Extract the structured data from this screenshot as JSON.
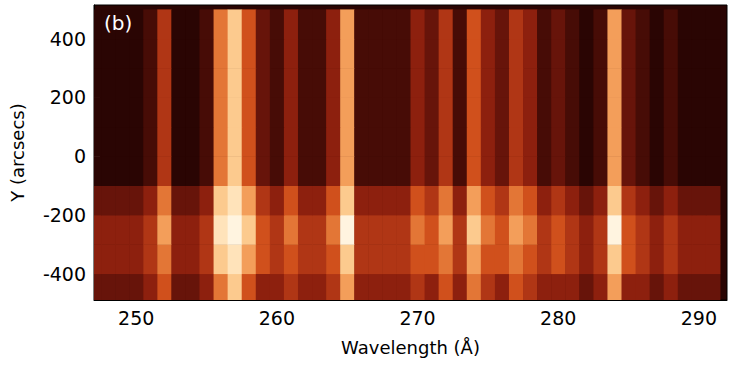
{
  "chart_data": {
    "type": "heatmap",
    "panel_label": "(b)",
    "x_label": "Wavelength (Å)",
    "y_label": "Y (arcsecs)",
    "x": [
      247,
      248,
      249,
      250,
      251,
      252,
      253,
      254,
      255,
      256,
      257,
      258,
      259,
      260,
      261,
      262,
      263,
      264,
      265,
      266,
      267,
      268,
      269,
      270,
      271,
      272,
      273,
      274,
      275,
      276,
      277,
      278,
      279,
      280,
      281,
      282,
      283,
      284,
      285,
      286,
      287,
      288,
      289,
      290,
      291
    ],
    "y": [
      -450,
      -350,
      -250,
      -150,
      -50,
      50,
      150,
      250,
      350,
      450
    ],
    "z": [
      [
        2,
        2,
        2,
        2,
        3,
        5,
        2,
        2,
        3,
        6,
        8,
        5,
        3,
        3,
        4,
        3,
        3,
        4,
        7,
        3,
        3,
        3,
        3,
        4,
        3,
        5,
        3,
        6,
        4,
        3,
        5,
        4,
        3,
        3,
        3,
        2,
        3,
        7,
        3,
        3,
        2,
        3,
        2,
        2,
        2
      ],
      [
        3,
        3,
        3,
        3,
        4,
        6,
        3,
        3,
        4,
        8,
        9,
        7,
        5,
        4,
        5,
        4,
        4,
        5,
        8,
        4,
        4,
        4,
        4,
        5,
        5,
        6,
        4,
        7,
        5,
        5,
        6,
        5,
        4,
        5,
        4,
        3,
        4,
        8,
        5,
        4,
        3,
        4,
        3,
        3,
        3
      ],
      [
        3,
        3,
        3,
        3,
        4,
        7,
        3,
        3,
        4,
        9,
        10,
        8,
        5,
        4,
        6,
        4,
        4,
        6,
        10,
        4,
        4,
        4,
        4,
        6,
        5,
        7,
        4,
        8,
        6,
        5,
        7,
        6,
        4,
        5,
        4,
        3,
        4,
        10,
        5,
        4,
        3,
        4,
        3,
        3,
        3
      ],
      [
        2,
        2,
        2,
        2,
        3,
        6,
        2,
        2,
        3,
        8,
        9,
        7,
        4,
        3,
        5,
        3,
        3,
        5,
        8,
        3,
        3,
        3,
        3,
        5,
        4,
        6,
        3,
        7,
        5,
        4,
        6,
        5,
        3,
        4,
        3,
        2,
        3,
        8,
        4,
        3,
        2,
        3,
        2,
        2,
        2
      ],
      [
        0,
        0,
        0,
        0,
        1,
        4,
        0,
        0,
        1,
        6,
        8,
        5,
        2,
        1,
        3,
        1,
        1,
        3,
        7,
        1,
        1,
        1,
        1,
        3,
        2,
        4,
        1,
        5,
        3,
        2,
        4,
        3,
        1,
        2,
        1,
        0,
        1,
        7,
        2,
        1,
        0,
        1,
        0,
        0,
        0
      ],
      [
        0,
        0,
        0,
        0,
        1,
        4,
        0,
        0,
        1,
        6,
        8,
        5,
        2,
        1,
        3,
        1,
        1,
        3,
        7,
        1,
        1,
        1,
        1,
        3,
        2,
        4,
        1,
        5,
        3,
        2,
        4,
        3,
        1,
        2,
        1,
        0,
        1,
        7,
        2,
        1,
        0,
        1,
        0,
        0,
        0
      ],
      [
        0,
        0,
        0,
        0,
        1,
        4,
        0,
        0,
        1,
        6,
        8,
        5,
        2,
        1,
        3,
        1,
        1,
        3,
        7,
        1,
        1,
        1,
        1,
        3,
        2,
        4,
        1,
        5,
        3,
        2,
        4,
        3,
        1,
        2,
        1,
        0,
        1,
        7,
        2,
        1,
        0,
        1,
        0,
        0,
        0
      ],
      [
        0,
        0,
        0,
        0,
        1,
        4,
        0,
        0,
        1,
        6,
        8,
        5,
        2,
        1,
        3,
        1,
        1,
        3,
        7,
        1,
        1,
        1,
        1,
        3,
        2,
        4,
        1,
        5,
        3,
        2,
        4,
        3,
        1,
        2,
        1,
        0,
        1,
        7,
        2,
        1,
        0,
        1,
        0,
        0,
        0
      ],
      [
        0,
        0,
        0,
        0,
        1,
        4,
        0,
        0,
        1,
        6,
        8,
        5,
        2,
        1,
        3,
        1,
        1,
        3,
        7,
        1,
        1,
        1,
        1,
        3,
        2,
        4,
        1,
        5,
        3,
        2,
        4,
        3,
        1,
        2,
        1,
        0,
        1,
        7,
        2,
        1,
        0,
        1,
        0,
        0,
        0
      ],
      [
        0,
        0,
        0,
        0,
        1,
        4,
        0,
        0,
        1,
        6,
        8,
        5,
        2,
        1,
        3,
        1,
        1,
        3,
        7,
        1,
        1,
        1,
        1,
        3,
        2,
        4,
        1,
        5,
        3,
        2,
        4,
        3,
        1,
        2,
        1,
        0,
        1,
        7,
        2,
        1,
        0,
        1,
        0,
        0,
        0
      ]
    ],
    "xlim": [
      247,
      292
    ],
    "ylim": [
      -490,
      515
    ],
    "xticks": [
      250,
      260,
      270,
      280,
      290
    ],
    "yticks": [
      -400,
      -200,
      0,
      200,
      400
    ]
  }
}
